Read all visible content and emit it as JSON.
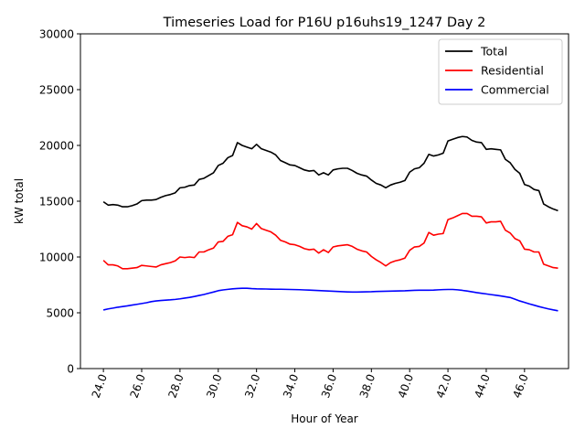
{
  "chart_data": {
    "type": "line",
    "title": "Timeseries Load for P16U p16uhs19_1247  Day 2",
    "xlabel": "Hour of Year",
    "ylabel": "kW total",
    "xlim": [
      22.8,
      48.3
    ],
    "ylim": [
      0,
      30000
    ],
    "x_ticks": [
      24,
      26,
      28,
      30,
      32,
      34,
      36,
      38,
      40,
      42,
      44,
      46
    ],
    "x_tick_labels": [
      "24.0",
      "26.0",
      "28.0",
      "30.0",
      "32.0",
      "34.0",
      "36.0",
      "38.0",
      "40.0",
      "42.0",
      "44.0",
      "46.0"
    ],
    "y_ticks": [
      0,
      5000,
      10000,
      15000,
      20000,
      25000,
      30000
    ],
    "y_tick_labels": [
      "0",
      "5000",
      "10000",
      "15000",
      "20000",
      "25000",
      "30000"
    ],
    "legend_position": "top-right",
    "x": [
      24.0,
      24.25,
      24.5,
      24.75,
      25.0,
      25.25,
      25.5,
      25.75,
      26.0,
      26.25,
      26.5,
      26.75,
      27.0,
      27.25,
      27.5,
      27.75,
      28.0,
      28.25,
      28.5,
      28.75,
      29.0,
      29.25,
      29.5,
      29.75,
      30.0,
      30.25,
      30.5,
      30.75,
      31.0,
      31.25,
      31.5,
      31.75,
      32.0,
      32.25,
      32.5,
      32.75,
      33.0,
      33.25,
      33.5,
      33.75,
      34.0,
      34.25,
      34.5,
      34.75,
      35.0,
      35.25,
      35.5,
      35.75,
      36.0,
      36.25,
      36.5,
      36.75,
      37.0,
      37.25,
      37.5,
      37.75,
      38.0,
      38.25,
      38.5,
      38.75,
      39.0,
      39.25,
      39.5,
      39.75,
      40.0,
      40.25,
      40.5,
      40.75,
      41.0,
      41.25,
      41.5,
      41.75,
      42.0,
      42.25,
      42.5,
      42.75,
      43.0,
      43.25,
      43.5,
      43.75,
      44.0,
      44.25,
      44.5,
      44.75,
      45.0,
      45.25,
      45.5,
      45.75,
      46.0,
      46.25,
      46.5,
      46.75,
      47.0,
      47.25,
      47.5,
      47.75
    ],
    "series": [
      {
        "name": "Total",
        "color": "#000000",
        "values": [
          14950,
          14650,
          14700,
          14650,
          14500,
          14500,
          14600,
          14750,
          15050,
          15100,
          15100,
          15150,
          15350,
          15500,
          15600,
          15750,
          16200,
          16250,
          16400,
          16450,
          16950,
          17050,
          17300,
          17550,
          18200,
          18400,
          18900,
          19100,
          20250,
          20000,
          19850,
          19700,
          20100,
          19700,
          19550,
          19400,
          19150,
          18650,
          18450,
          18250,
          18200,
          18000,
          17800,
          17700,
          17750,
          17350,
          17550,
          17350,
          17800,
          17900,
          17950,
          17950,
          17750,
          17500,
          17350,
          17250,
          16900,
          16600,
          16450,
          16200,
          16450,
          16600,
          16700,
          16850,
          17600,
          17900,
          18000,
          18400,
          19200,
          19050,
          19150,
          19300,
          20400,
          20550,
          20700,
          20800,
          20750,
          20450,
          20300,
          20250,
          19650,
          19700,
          19650,
          19600,
          18750,
          18450,
          17850,
          17500,
          16500,
          16350,
          16050,
          15950,
          14750,
          14500,
          14300,
          14150
        ]
      },
      {
        "name": "Residential",
        "color": "#ff0000",
        "values": [
          9700,
          9300,
          9300,
          9200,
          8950,
          8950,
          9000,
          9050,
          9250,
          9200,
          9150,
          9100,
          9300,
          9400,
          9500,
          9650,
          10000,
          9950,
          10000,
          9950,
          10450,
          10450,
          10650,
          10800,
          11350,
          11400,
          11850,
          12000,
          13100,
          12800,
          12700,
          12500,
          13000,
          12550,
          12400,
          12250,
          11950,
          11500,
          11350,
          11150,
          11100,
          10950,
          10750,
          10650,
          10700,
          10350,
          10650,
          10400,
          10900,
          11000,
          11050,
          11100,
          10950,
          10700,
          10550,
          10450,
          10050,
          9750,
          9500,
          9200,
          9500,
          9650,
          9750,
          9900,
          10600,
          10900,
          10950,
          11250,
          12200,
          11950,
          12050,
          12100,
          13350,
          13500,
          13700,
          13900,
          13900,
          13650,
          13650,
          13600,
          13050,
          13150,
          13150,
          13200,
          12400,
          12150,
          11650,
          11450,
          10700,
          10650,
          10450,
          10450,
          9350,
          9200,
          9050,
          9000
        ]
      },
      {
        "name": "Commercial",
        "color": "#0000ff",
        "values": [
          5250,
          5350,
          5420,
          5500,
          5560,
          5620,
          5690,
          5760,
          5830,
          5900,
          6000,
          6060,
          6100,
          6130,
          6160,
          6200,
          6250,
          6320,
          6380,
          6460,
          6550,
          6640,
          6750,
          6860,
          6980,
          7050,
          7100,
          7150,
          7180,
          7200,
          7200,
          7170,
          7150,
          7140,
          7130,
          7120,
          7110,
          7110,
          7100,
          7090,
          7080,
          7070,
          7050,
          7030,
          7010,
          6990,
          6970,
          6950,
          6930,
          6910,
          6890,
          6870,
          6860,
          6860,
          6870,
          6880,
          6890,
          6910,
          6920,
          6930,
          6940,
          6950,
          6960,
          6970,
          6990,
          7010,
          7020,
          7020,
          7020,
          7030,
          7060,
          7080,
          7090,
          7090,
          7060,
          7010,
          6950,
          6880,
          6810,
          6750,
          6690,
          6630,
          6570,
          6510,
          6440,
          6370,
          6220,
          6060,
          5930,
          5800,
          5680,
          5560,
          5450,
          5350,
          5260,
          5180
        ]
      }
    ]
  }
}
